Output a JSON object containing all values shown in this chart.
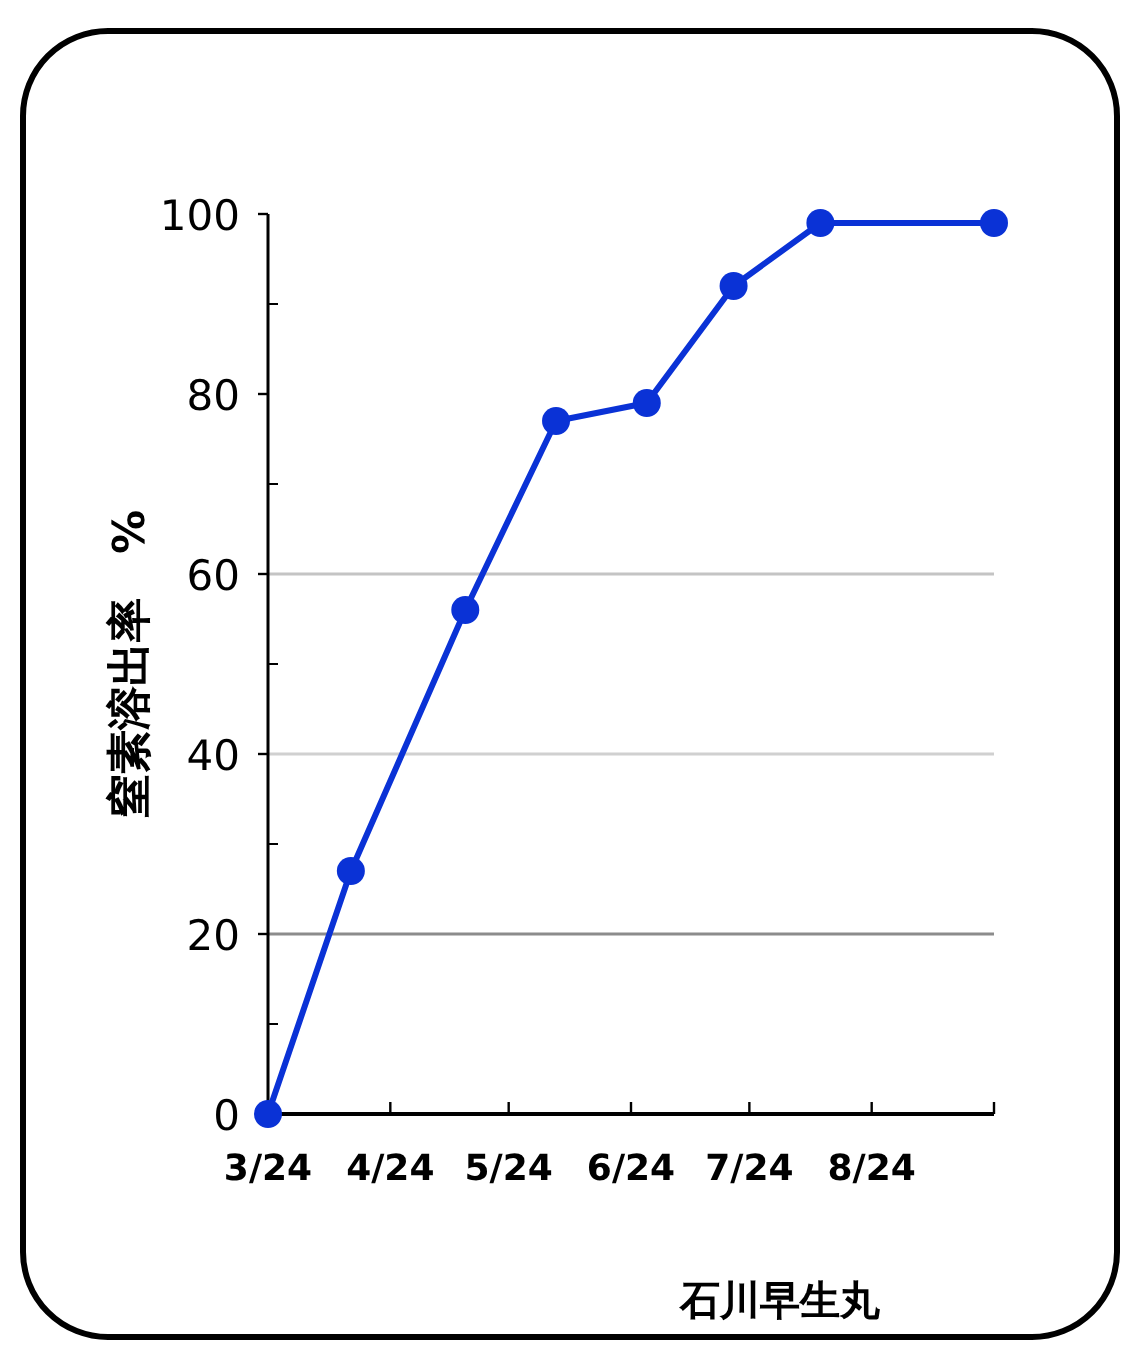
{
  "chart_data": {
    "type": "line",
    "ylabel": "窒素溶出率　%",
    "x": [
      "--03-24",
      "--04-14",
      "--05-13",
      "--06-05",
      "--06-28",
      "--07-20",
      "--08-11",
      "--09-24"
    ],
    "series": [
      {
        "color": "#0a32d6",
        "values": [
          0,
          27,
          56,
          77,
          79,
          92,
          99,
          99
        ]
      }
    ],
    "xlim": [
      "--03-24",
      "--09-24"
    ],
    "xticks": [
      {
        "value": "--03-24",
        "label": "3/24"
      },
      {
        "value": "--04-24",
        "label": "4/24"
      },
      {
        "value": "--05-24",
        "label": "5/24"
      },
      {
        "value": "--06-24",
        "label": "6/24"
      },
      {
        "value": "--07-24",
        "label": "7/24"
      },
      {
        "value": "--08-24",
        "label": "8/24"
      },
      {
        "value": "--09-24",
        "label": null
      }
    ],
    "ylim": [
      0,
      100
    ],
    "yticks": [
      0,
      {
        "value": 10,
        "label": null
      },
      20,
      {
        "value": 30,
        "label": null
      },
      40,
      {
        "value": 50,
        "label": null
      },
      60,
      {
        "value": 70,
        "label": null
      },
      80,
      {
        "value": 90,
        "label": null
      },
      100
    ],
    "ref_lines": [
      {
        "axis": "y",
        "value": 20,
        "color": "#8c8c8c"
      },
      {
        "axis": "y",
        "value": 40,
        "color": "#d0d0d0"
      },
      {
        "axis": "y",
        "value": 60,
        "color": "#c4c4c4"
      }
    ],
    "marker": "circle",
    "line_style": "solid",
    "annotations": [
      "石川早生丸"
    ]
  }
}
